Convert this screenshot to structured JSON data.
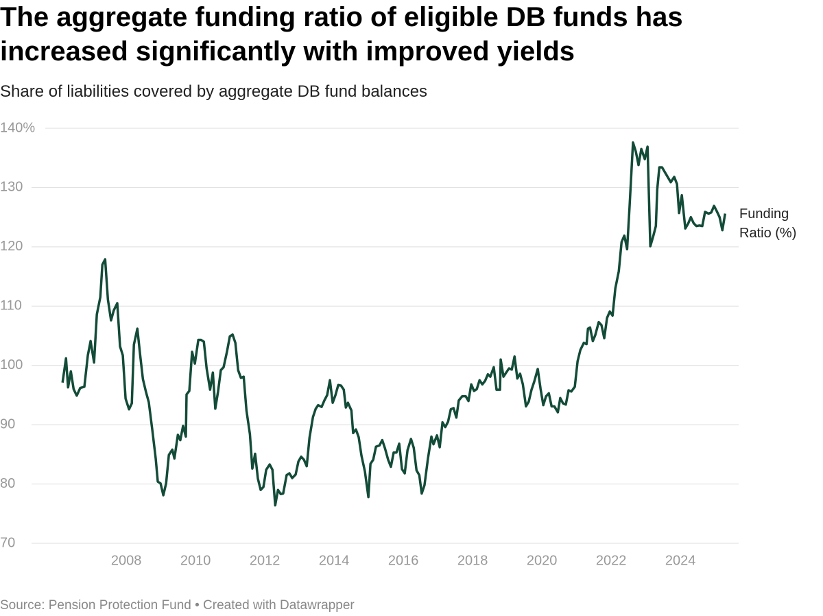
{
  "chart_data": {
    "type": "line",
    "title": "The aggregate funding ratio of eligible DB funds has increased significantly with improved yields",
    "subtitle": "Share of liabilities covered by aggregate DB fund balances",
    "source": "Source: Pension Protection Fund • Created with Datawrapper",
    "x": [
      2006.16,
      2006.26,
      2006.32,
      2006.4,
      2006.48,
      2006.57,
      2006.67,
      2006.79,
      2006.89,
      2006.97,
      2007.07,
      2007.15,
      2007.25,
      2007.31,
      2007.39,
      2007.47,
      2007.56,
      2007.64,
      2007.74,
      2007.82,
      2007.9,
      2007.98,
      2008.08,
      2008.16,
      2008.22,
      2008.32,
      2008.4,
      2008.48,
      2008.57,
      2008.65,
      2008.75,
      2008.85,
      2008.91,
      2008.99,
      2009.07,
      2009.15,
      2009.23,
      2009.33,
      2009.39,
      2009.49,
      2009.56,
      2009.64,
      2009.72,
      2009.74,
      2009.82,
      2009.9,
      2009.98,
      2010.08,
      2010.16,
      2010.24,
      2010.32,
      2010.42,
      2010.5,
      2010.57,
      2010.65,
      2010.73,
      2010.81,
      2010.91,
      2010.99,
      2011.07,
      2011.15,
      2011.23,
      2011.31,
      2011.39,
      2011.47,
      2011.57,
      2011.64,
      2011.72,
      2011.8,
      2011.88,
      2011.96,
      2012.04,
      2012.14,
      2012.22,
      2012.3,
      2012.38,
      2012.46,
      2012.53,
      2012.63,
      2012.71,
      2012.79,
      2012.89,
      2012.97,
      2013.05,
      2013.13,
      2013.21,
      2013.29,
      2013.39,
      2013.47,
      2013.54,
      2013.64,
      2013.72,
      2013.8,
      2013.88,
      2013.96,
      2014.04,
      2014.12,
      2014.2,
      2014.28,
      2014.34,
      2014.4,
      2014.5,
      2014.55,
      2014.63,
      2014.71,
      2014.79,
      2014.89,
      2014.99,
      2015.05,
      2015.13,
      2015.21,
      2015.31,
      2015.39,
      2015.47,
      2015.56,
      2015.64,
      2015.72,
      2015.8,
      2015.88,
      2015.96,
      2016.04,
      2016.12,
      2016.22,
      2016.3,
      2016.38,
      2016.46,
      2016.53,
      2016.61,
      2016.71,
      2016.81,
      2016.87,
      2016.97,
      2017.05,
      2017.13,
      2017.21,
      2017.29,
      2017.37,
      2017.45,
      2017.53,
      2017.6,
      2017.7,
      2017.8,
      2017.88,
      2017.96,
      2018.04,
      2018.12,
      2018.2,
      2018.28,
      2018.36,
      2018.44,
      2018.51,
      2018.61,
      2018.69,
      2018.79,
      2018.81,
      2018.89,
      2018.97,
      2019.05,
      2019.13,
      2019.21,
      2019.29,
      2019.37,
      2019.45,
      2019.54,
      2019.62,
      2019.7,
      2019.78,
      2019.88,
      2019.96,
      2020.04,
      2020.12,
      2020.2,
      2020.28,
      2020.36,
      2020.46,
      2020.53,
      2020.61,
      2020.69,
      2020.77,
      2020.85,
      2020.95,
      2021.03,
      2021.11,
      2021.21,
      2021.29,
      2021.33,
      2021.39,
      2021.47,
      2021.54,
      2021.64,
      2021.72,
      2021.8,
      2021.88,
      2021.96,
      2022.04,
      2022.12,
      2022.22,
      2022.3,
      2022.38,
      2022.46,
      2022.53,
      2022.63,
      2022.71,
      2022.79,
      2022.87,
      2022.97,
      2023.05,
      2023.13,
      2023.21,
      2023.29,
      2023.33,
      2023.39,
      2023.47,
      2023.54,
      2023.62,
      2023.72,
      2023.82,
      2023.9,
      2023.96,
      2024.04,
      2024.14,
      2024.22,
      2024.3,
      2024.38,
      2024.46,
      2024.55,
      2024.63,
      2024.71,
      2024.81,
      2024.89,
      2024.97,
      2025.05,
      2025.13,
      2025.21,
      2025.29
    ],
    "series": [
      {
        "name": "Funding Ratio (%)",
        "color": "#134b39",
        "values": [
          97.1,
          101.2,
          96.3,
          99.0,
          96.0,
          94.9,
          96.2,
          96.4,
          101.7,
          104.1,
          100.5,
          108.6,
          111.5,
          117.0,
          117.9,
          111.1,
          107.6,
          109.3,
          110.5,
          103.2,
          101.7,
          94.4,
          92.6,
          93.6,
          103.5,
          106.2,
          101.8,
          97.7,
          95.5,
          93.8,
          89.2,
          84.3,
          80.4,
          80.1,
          78.1,
          80.1,
          84.9,
          85.8,
          84.3,
          88.3,
          87.4,
          89.8,
          88.0,
          95.1,
          95.7,
          102.3,
          100.3,
          104.3,
          104.3,
          104.0,
          99.5,
          95.9,
          98.8,
          92.7,
          95.6,
          99.2,
          99.7,
          102.4,
          104.9,
          105.2,
          103.8,
          99.2,
          97.9,
          98.1,
          92.4,
          88.4,
          82.6,
          85.1,
          80.9,
          79.0,
          79.5,
          82.4,
          83.3,
          82.4,
          76.4,
          79.0,
          78.3,
          78.4,
          81.5,
          81.8,
          81.0,
          81.6,
          83.8,
          84.6,
          84.1,
          83.0,
          87.8,
          91.3,
          92.7,
          93.3,
          93.0,
          94.1,
          95.0,
          97.5,
          93.7,
          95.0,
          96.7,
          96.6,
          95.9,
          92.9,
          93.7,
          92.4,
          88.6,
          89.2,
          87.9,
          84.8,
          82.1,
          77.8,
          83.4,
          84.1,
          86.3,
          86.5,
          87.4,
          86.0,
          84.1,
          82.9,
          85.3,
          85.3,
          86.8,
          82.5,
          81.8,
          85.7,
          87.6,
          86.1,
          82.3,
          81.5,
          78.4,
          79.8,
          84.3,
          88.0,
          86.7,
          88.2,
          86.2,
          90.4,
          89.6,
          90.5,
          92.6,
          92.8,
          91.2,
          94.1,
          94.8,
          94.8,
          94.0,
          96.8,
          95.7,
          96.0,
          97.5,
          96.8,
          97.4,
          98.5,
          98.1,
          99.7,
          95.9,
          95.9,
          101.0,
          98.1,
          98.8,
          99.5,
          99.3,
          101.5,
          97.8,
          98.6,
          96.8,
          93.1,
          93.9,
          95.9,
          97.3,
          99.4,
          96.1,
          93.3,
          94.8,
          95.3,
          93.1,
          93.1,
          92.1,
          94.5,
          93.6,
          93.4,
          95.8,
          95.6,
          96.4,
          100.7,
          102.6,
          103.8,
          103.6,
          106.2,
          106.4,
          104.1,
          105.1,
          107.3,
          106.8,
          104.6,
          108.0,
          109.1,
          108.4,
          113.0,
          115.9,
          120.8,
          121.9,
          119.6,
          126.7,
          137.6,
          136.1,
          133.8,
          136.5,
          134.8,
          136.9,
          120.1,
          121.7,
          123.5,
          129.7,
          133.4,
          133.4,
          132.7,
          131.9,
          130.9,
          131.8,
          130.6,
          125.7,
          128.7,
          123.1,
          123.9,
          125.0,
          124.0,
          123.5,
          123.6,
          123.5,
          125.9,
          125.6,
          125.8,
          126.9,
          126.0,
          125.0,
          122.8,
          125.6
        ]
      }
    ],
    "xlim": [
      2005.78,
      2025.68
    ],
    "xticks": [
      2008,
      2010,
      2012,
      2014,
      2016,
      2018,
      2020,
      2022,
      2024
    ],
    "ylim": [
      70,
      140
    ],
    "yticks": [
      70,
      80,
      90,
      100,
      110,
      120,
      130,
      {
        "value": 140,
        "label": "140%"
      }
    ],
    "grid": true
  }
}
